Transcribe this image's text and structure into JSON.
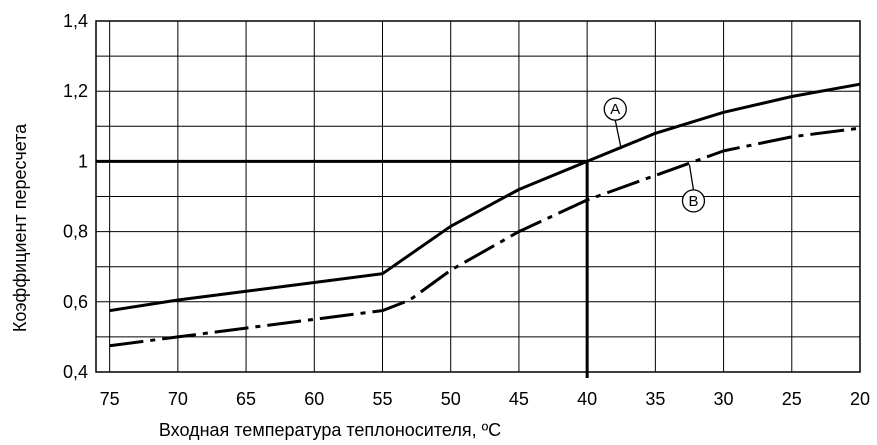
{
  "chart_data": {
    "type": "line",
    "xlabel": "Входная температура теплоносителя, ºC",
    "ylabel": "Коэффициент пересчета",
    "xlim": [
      76,
      20
    ],
    "ylim": [
      0.4,
      1.4
    ],
    "x_ticks": [
      75,
      70,
      65,
      60,
      55,
      50,
      45,
      40,
      35,
      30,
      25,
      20
    ],
    "x_tick_labels": [
      "75",
      "70",
      "65",
      "60",
      "55",
      "50",
      "45",
      "40",
      "35",
      "30",
      "25",
      "20"
    ],
    "y_ticks": [
      0.4,
      0.6,
      0.8,
      1.0,
      1.2,
      1.4
    ],
    "y_tick_labels": [
      "0,4",
      "0,6",
      "0,8",
      "1",
      "1,2",
      "1,4"
    ],
    "grid": true,
    "series": [
      {
        "name": "A",
        "style": "solid",
        "x": [
          75,
          70,
          65,
          60,
          55,
          50,
          45,
          40,
          35,
          30,
          25,
          20
        ],
        "y": [
          0.575,
          0.605,
          0.63,
          0.655,
          0.68,
          0.815,
          0.92,
          1.0,
          1.08,
          1.14,
          1.185,
          1.22
        ]
      },
      {
        "name": "B",
        "style": "dash-dot",
        "x": [
          75,
          70,
          65,
          60,
          55,
          53,
          50,
          45,
          40,
          35,
          30,
          25,
          20
        ],
        "y": [
          0.475,
          0.5,
          0.525,
          0.55,
          0.575,
          0.605,
          0.69,
          0.8,
          0.89,
          0.96,
          1.03,
          1.07,
          1.095
        ]
      }
    ],
    "reference_lines": {
      "y": 1.0,
      "x": 40
    },
    "callouts": [
      {
        "label": "A",
        "series": "A",
        "anchor_x": 37.5,
        "anchor_y": 1.035
      },
      {
        "label": "B",
        "series": "B",
        "anchor_x": 32.5,
        "anchor_y": 0.99
      }
    ]
  },
  "style": {
    "line_color": "#000000",
    "grid_color": "#000000",
    "background": "#ffffff"
  }
}
